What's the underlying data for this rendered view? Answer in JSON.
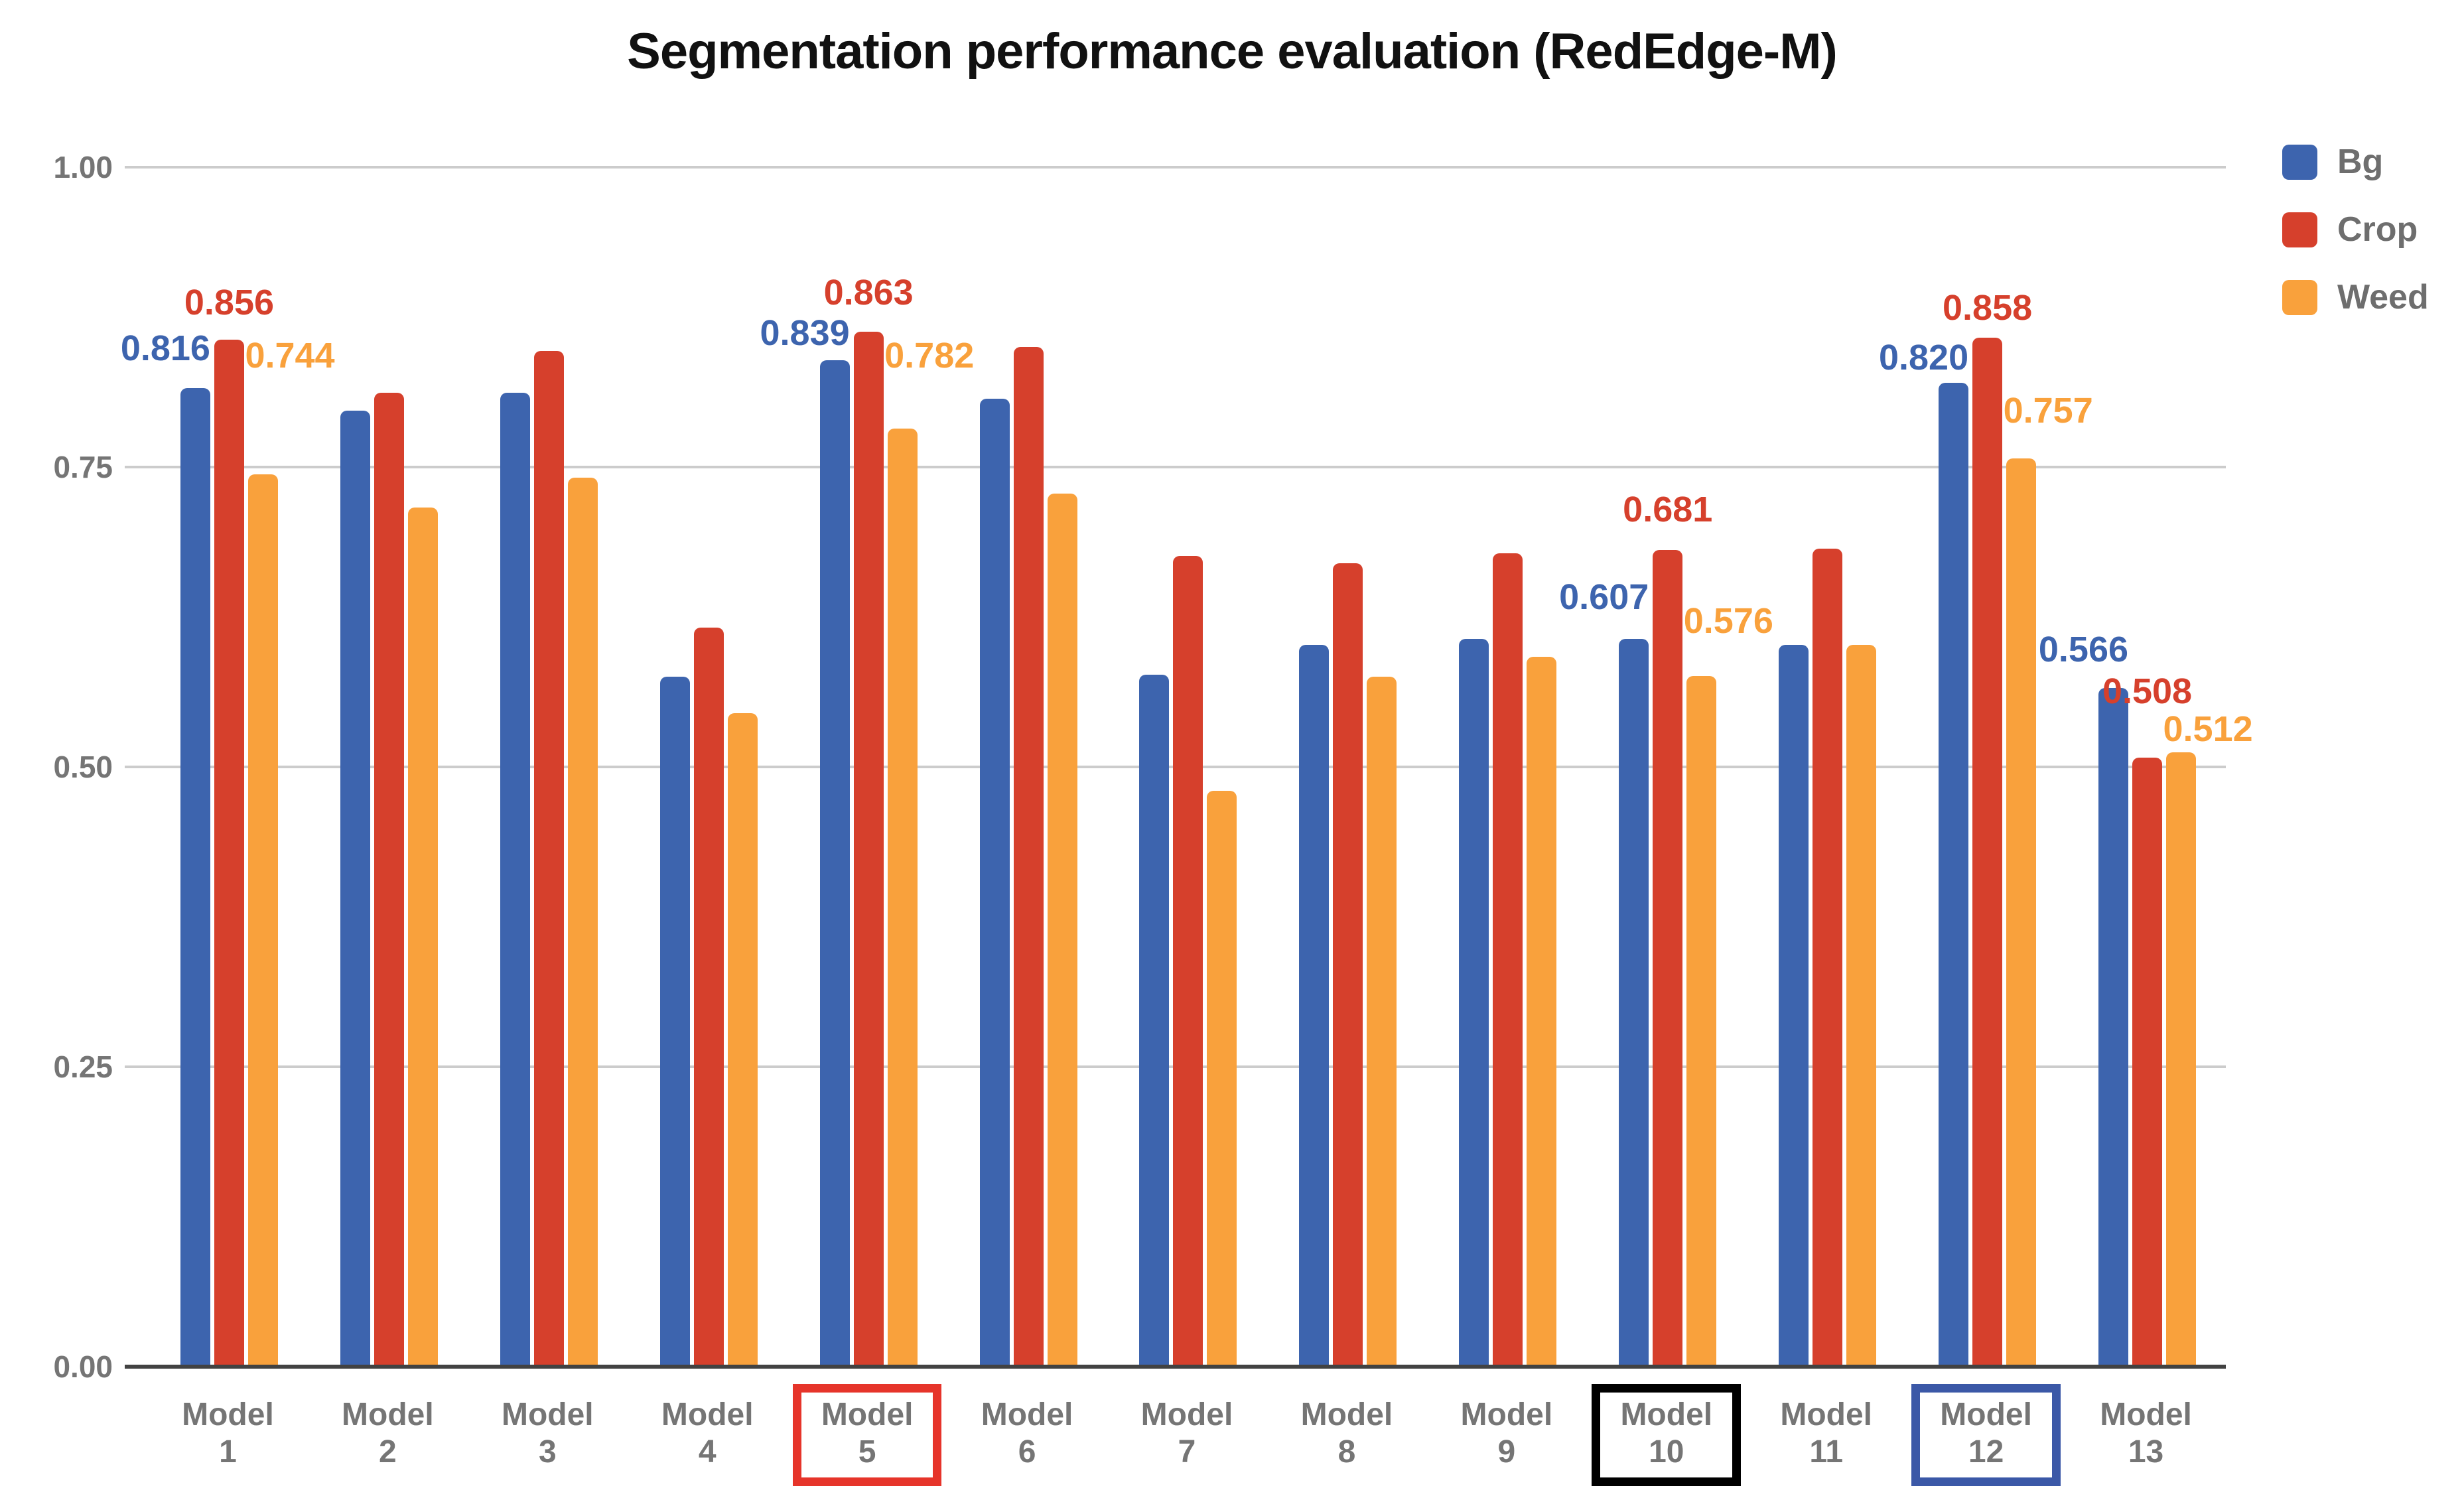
{
  "title": "Segmentation performance evaluation (RedEdge-M)",
  "legend": {
    "items": [
      {
        "label": "Bg",
        "color": "#3D64AE"
      },
      {
        "label": "Crop",
        "color": "#D6402C"
      },
      {
        "label": "Weed",
        "color": "#F9A13C"
      }
    ]
  },
  "colors": {
    "bg_series": "#3D64AE",
    "crop_series": "#D6402C",
    "weed_series": "#F9A13C",
    "axis_text": "#757575",
    "legend_text": "#6e6e6e",
    "gridline": "#cccccc",
    "baseline": "#424242",
    "title_text": "#111111",
    "highlight_red_box": "#E6342A",
    "highlight_black_box": "#000000",
    "highlight_blue_box": "#3B58A7"
  },
  "y_axis": {
    "ticks": [
      "1.00",
      "0.75",
      "0.50",
      "0.25",
      "0.00"
    ]
  },
  "chart_data": {
    "type": "bar",
    "title": "Segmentation performance evaluation (RedEdge-M)",
    "categories": [
      "Model 1",
      "Model 2",
      "Model 3",
      "Model 4",
      "Model 5",
      "Model 6",
      "Model 7",
      "Model 8",
      "Model 9",
      "Model 10",
      "Model 11",
      "Model 12",
      "Model 13"
    ],
    "series": [
      {
        "name": "Bg",
        "color": "#3D64AE",
        "values": [
          0.816,
          0.797,
          0.812,
          0.575,
          0.839,
          0.807,
          0.577,
          0.602,
          0.607,
          0.607,
          0.602,
          0.82,
          0.566
        ]
      },
      {
        "name": "Crop",
        "color": "#D6402C",
        "values": [
          0.856,
          0.812,
          0.847,
          0.616,
          0.863,
          0.85,
          0.676,
          0.67,
          0.678,
          0.681,
          0.682,
          0.858,
          0.508
        ]
      },
      {
        "name": "Weed",
        "color": "#F9A13C",
        "values": [
          0.744,
          0.716,
          0.741,
          0.545,
          0.782,
          0.728,
          0.48,
          0.575,
          0.592,
          0.576,
          0.602,
          0.757,
          0.512
        ]
      }
    ],
    "data_labels": [
      {
        "category": "Model 1",
        "category_index": 0,
        "values": [
          "0.816",
          "0.856",
          "0.744"
        ]
      },
      {
        "category": "Model 5",
        "category_index": 4,
        "values": [
          "0.839",
          "0.863",
          "0.782"
        ]
      },
      {
        "category": "Model 10",
        "category_index": 9,
        "values": [
          "0.607",
          "0.681",
          "0.576"
        ]
      },
      {
        "category": "Model 12",
        "category_index": 11,
        "values": [
          "0.820",
          "0.858",
          "0.757"
        ]
      },
      {
        "category": "Model 13",
        "category_index": 12,
        "values": [
          "0.566",
          "0.508",
          "0.512"
        ]
      }
    ],
    "highlighted_categories": [
      {
        "category": "Model 5",
        "category_index": 4,
        "box_color": "#E6342A"
      },
      {
        "category": "Model 10",
        "category_index": 9,
        "box_color": "#000000"
      },
      {
        "category": "Model 12",
        "category_index": 11,
        "box_color": "#3B58A7"
      }
    ],
    "ylim": [
      0,
      1.0
    ],
    "yticks": [
      0.0,
      0.25,
      0.5,
      0.75,
      1.0
    ],
    "grid": true,
    "legend_position": "top-right",
    "legend_entries": [
      "Bg",
      "Crop",
      "Weed"
    ]
  }
}
